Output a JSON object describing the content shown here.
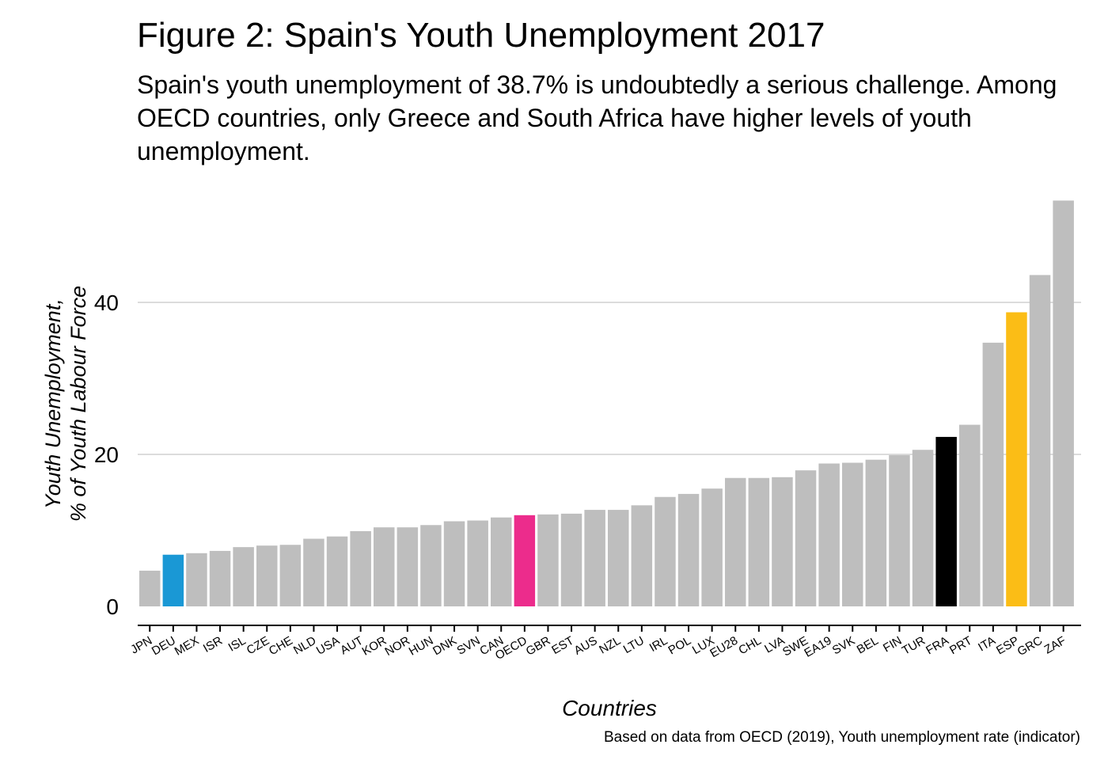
{
  "chart_data": {
    "type": "bar",
    "title": "Figure 2: Spain's Youth Unemployment 2017",
    "subtitle": "Spain's youth unemployment of 38.7% is undoubtedly a serious challenge. Among OECD countries, only Greece and South Africa have higher levels of youth unemployment.",
    "xlabel": "Countries",
    "ylabel_line1": "Youth Unemployment,",
    "ylabel_line2": "% of Youth Labour Force",
    "caption": "Based on data from OECD (2019), Youth unemployment rate (indicator)",
    "ylim": [
      0,
      53
    ],
    "yticks": [
      0,
      20,
      40
    ],
    "grid": "horizontal",
    "bar_color": "#bebebe",
    "highlight_colors": {
      "DEU": "#1a98d5",
      "OECD": "#ec2c8c",
      "FRA": "#000000",
      "ESP": "#fbbd16"
    },
    "categories": [
      "JPN",
      "DEU",
      "MEX",
      "ISR",
      "ISL",
      "CZE",
      "CHE",
      "NLD",
      "USA",
      "AUT",
      "KOR",
      "NOR",
      "HUN",
      "DNK",
      "SVN",
      "CAN",
      "OECD",
      "GBR",
      "EST",
      "AUS",
      "NZL",
      "LTU",
      "IRL",
      "POL",
      "LUX",
      "EU28",
      "CHL",
      "LVA",
      "SWE",
      "EA19",
      "SVK",
      "BEL",
      "FIN",
      "TUR",
      "FRA",
      "PRT",
      "ITA",
      "ESP",
      "GRC",
      "ZAF"
    ],
    "values": [
      4.7,
      6.8,
      7.0,
      7.3,
      7.8,
      8.0,
      8.1,
      8.9,
      9.2,
      9.9,
      10.4,
      10.4,
      10.7,
      11.2,
      11.3,
      11.7,
      12.0,
      12.1,
      12.2,
      12.7,
      12.7,
      13.3,
      14.4,
      14.8,
      15.5,
      16.9,
      16.9,
      17.0,
      17.9,
      18.8,
      18.9,
      19.3,
      19.9,
      20.6,
      22.3,
      23.9,
      34.7,
      38.7,
      43.6,
      53.4
    ]
  }
}
